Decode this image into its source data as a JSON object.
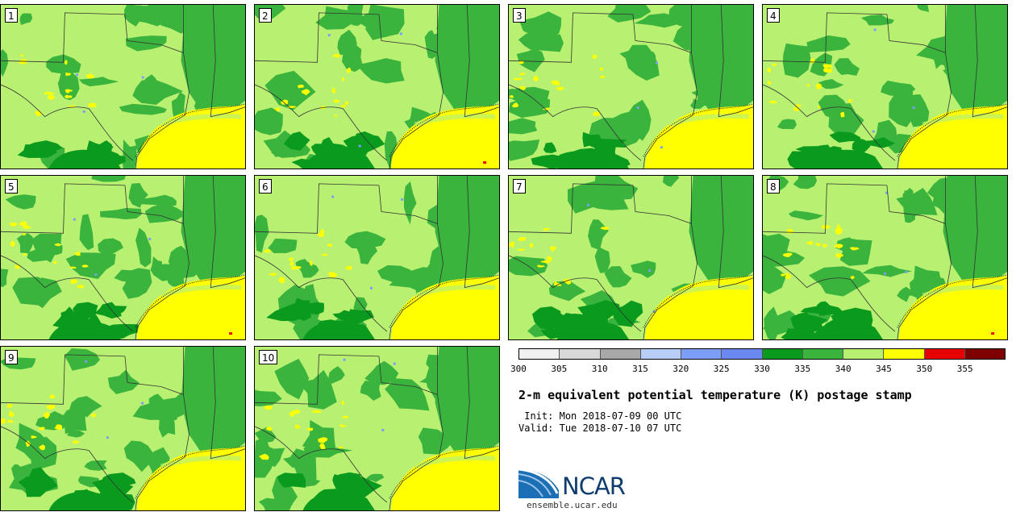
{
  "title": "2-m equivalent potential temperature (K) postage stamp",
  "init_label": " Init:",
  "init_value": "Mon 2018-07-09 00 UTC",
  "valid_label": "Valid:",
  "valid_value": "Tue 2018-07-10 07 UTC",
  "org_name": "NCAR",
  "org_url": "ensemble.ucar.edu",
  "members": [
    "1",
    "2",
    "3",
    "4",
    "5",
    "6",
    "7",
    "8",
    "9",
    "10"
  ],
  "colorbar": {
    "ticks": [
      "300",
      "305",
      "310",
      "315",
      "320",
      "325",
      "330",
      "335",
      "340",
      "345",
      "350",
      "355"
    ],
    "colors": [
      "#f0f0f0",
      "#d9d9d9",
      "#a8a8a8",
      "#b8cdf8",
      "#7d9ef6",
      "#6a88f0",
      "#0a9a1e",
      "#3ab43c",
      "#b8f072",
      "#ffff00",
      "#e60000",
      "#7f0000"
    ]
  },
  "map_colors": {
    "base": "#b8f072",
    "mid": "#3ab43c",
    "dark": "#0a9a1e",
    "warm": "#ffff00",
    "hot": "#e60000",
    "cool": "#7d9ef6",
    "border": "#333333"
  }
}
